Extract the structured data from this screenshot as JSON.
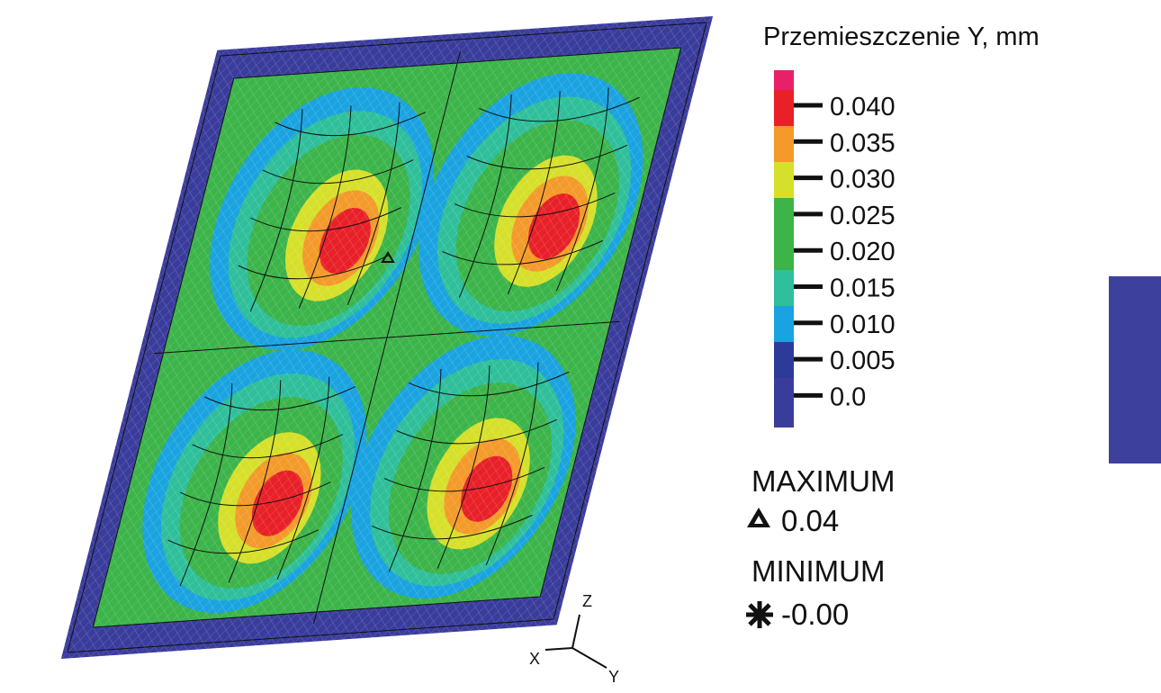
{
  "legend": {
    "title": "Przemieszczenie Y, mm",
    "ticks": [
      "0.040",
      "0.035",
      "0.030",
      "0.025",
      "0.020",
      "0.015",
      "0.010",
      "0.005",
      "0.0"
    ]
  },
  "extremes": {
    "max_label": "MAXIMUM",
    "max_value": "0.04",
    "min_label": "MINIMUM",
    "min_value": "-0.00"
  },
  "triad": {
    "z": "Z",
    "x": "X",
    "y": "Y"
  }
}
